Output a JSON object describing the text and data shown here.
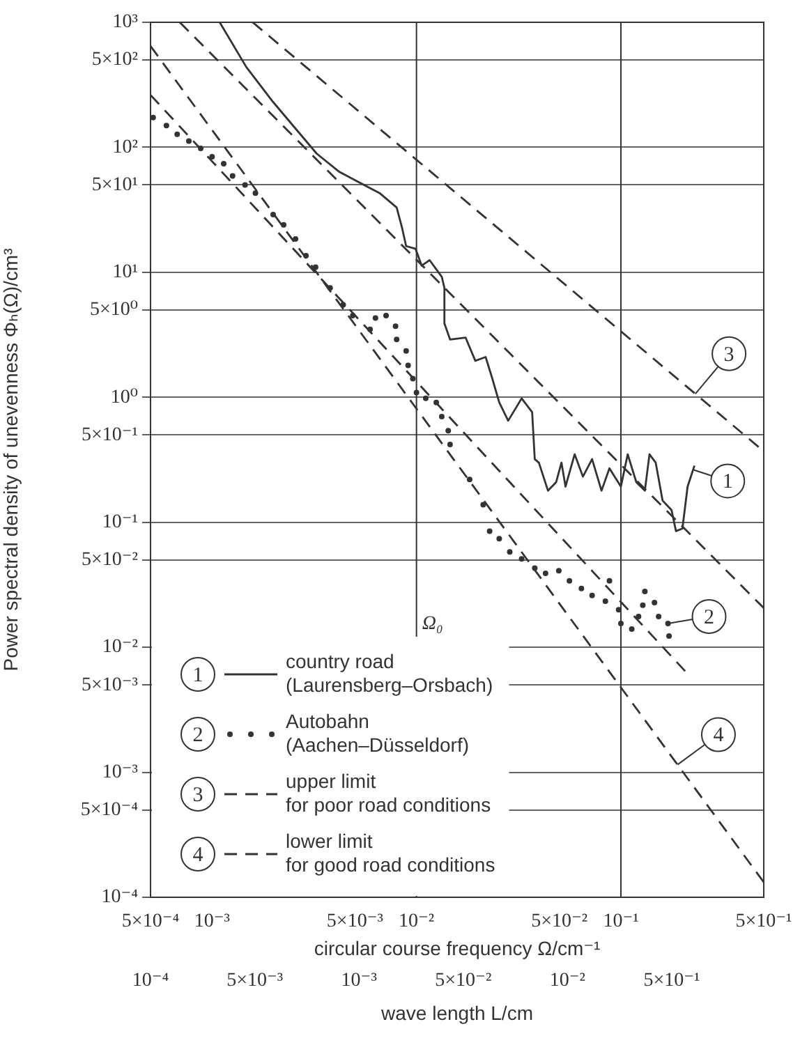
{
  "chart_data": {
    "type": "line",
    "xlabel": "circular course frequency Ω/cm⁻¹",
    "ylabel": "Power spectral density of unevenness Φₕ(Ω)/cm³",
    "x2label": "wave length L/cm",
    "log": "xy",
    "grid": "y",
    "legend": "bottom left",
    "xlim": [
      0.0005,
      0.5
    ],
    "xticks": [
      {
        "value": 0.0005,
        "label": "5×10⁻⁴"
      },
      {
        "value": 0.001,
        "label": "10⁻³"
      },
      {
        "value": 0.005,
        "label": "5×10⁻³"
      },
      {
        "value": 0.01,
        "label": "10⁻²"
      },
      {
        "value": 0.05,
        "label": "5×10⁻²"
      },
      {
        "value": 0.1,
        "label": "10⁻¹"
      },
      {
        "value": 0.5,
        "label": "5×10⁻¹"
      }
    ],
    "ylim": [
      0.0001,
      1000
    ],
    "yticks": [
      {
        "value": 1000,
        "label": "10³"
      },
      {
        "value": 500,
        "label": "5×10²"
      },
      {
        "value": 100,
        "label": "10²"
      },
      {
        "value": 50,
        "label": "5×10¹"
      },
      {
        "value": 10,
        "label": "10¹"
      },
      {
        "value": 5,
        "label": "5×10⁰"
      },
      {
        "value": 1,
        "label": "10⁰"
      },
      {
        "value": 0.5,
        "label": "5×10⁻¹"
      },
      {
        "value": 0.1,
        "label": "10⁻¹"
      },
      {
        "value": 0.05,
        "label": "5×10⁻²"
      },
      {
        "value": 0.01,
        "label": "10⁻²"
      },
      {
        "value": 0.005,
        "label": "5×10⁻³"
      },
      {
        "value": 0.001,
        "label": "10⁻³"
      },
      {
        "value": 0.0005,
        "label": "5×10⁻⁴"
      },
      {
        "value": 0.0001,
        "label": "10⁻⁴"
      }
    ],
    "ref_lines": [
      {
        "axis": "x",
        "value": 0.01,
        "label": "Ω₀"
      },
      {
        "axis": "x",
        "value": 0.1
      }
    ],
    "series": [
      {
        "name": "country road\n(Laurensberg–Orsbach)",
        "line_style": "solid",
        "color": "#333333",
        "x": [
          0.00109,
          0.00147,
          0.00199,
          0.00325,
          0.0042,
          0.0066,
          0.008,
          0.0085,
          0.0089,
          0.0099,
          0.0106,
          0.0116,
          0.0133,
          0.0137,
          0.0137,
          0.0146,
          0.0174,
          0.0194,
          0.0218,
          0.0235,
          0.0254,
          0.0281,
          0.0327,
          0.0368,
          0.0379,
          0.0397,
          0.044,
          0.0482,
          0.0512,
          0.0536,
          0.0594,
          0.0652,
          0.0723,
          0.0804,
          0.0879,
          0.1,
          0.108,
          0.119,
          0.131,
          0.138,
          0.148,
          0.16,
          0.177,
          0.186,
          0.2,
          0.212,
          0.229
        ],
        "values": [
          1000,
          439,
          230,
          89,
          63.5,
          43,
          33,
          22.7,
          16.2,
          15.4,
          11.3,
          12.5,
          9.2,
          7.5,
          3.9,
          2.9,
          3.0,
          1.96,
          2.1,
          1.41,
          0.91,
          0.65,
          0.98,
          0.76,
          0.32,
          0.3,
          0.179,
          0.209,
          0.3,
          0.193,
          0.35,
          0.232,
          0.32,
          0.179,
          0.27,
          0.193,
          0.35,
          0.209,
          0.179,
          0.35,
          0.3,
          0.149,
          0.125,
          0.085,
          0.089,
          0.193,
          0.284
        ]
      },
      {
        "name": "Autobahn\n(Aachen–Düsseldorf)",
        "type": "scatter",
        "marker": "circle",
        "color": "#333333",
        "x": [
          0.000515,
          0.000598,
          0.000675,
          0.00077,
          0.00088,
          0.001,
          0.00114,
          0.00126,
          0.00145,
          0.00163,
          0.00199,
          0.00224,
          0.00256,
          0.00288,
          0.00321,
          0.00378,
          0.00438,
          0.00488,
          0.00593,
          0.0063,
          0.0071,
          0.0079,
          0.008,
          0.0089,
          0.0091,
          0.0096,
          0.01,
          0.0111,
          0.0125,
          0.0133,
          0.0143,
          0.0146,
          0.0182,
          0.0212,
          0.0228,
          0.0254,
          0.0286,
          0.0327,
          0.0379,
          0.0428,
          0.0497,
          0.056,
          0.0641,
          0.0723,
          0.084,
          0.0879,
          0.0975,
          0.1,
          0.113,
          0.122,
          0.128,
          0.131,
          0.146,
          0.153,
          0.17,
          0.172
        ],
        "values": [
          173,
          149,
          127,
          112,
          98,
          84,
          74,
          59,
          50,
          43,
          29,
          24,
          18.5,
          13.6,
          11.0,
          7.5,
          5.5,
          4.5,
          3.5,
          4.3,
          4.5,
          3.7,
          2.9,
          2.35,
          1.8,
          1.41,
          1.09,
          0.98,
          0.91,
          0.7,
          0.54,
          0.42,
          0.22,
          0.138,
          0.085,
          0.074,
          0.058,
          0.051,
          0.043,
          0.039,
          0.041,
          0.034,
          0.0295,
          0.026,
          0.0234,
          0.034,
          0.02,
          0.0155,
          0.014,
          0.0176,
          0.0217,
          0.028,
          0.0228,
          0.0176,
          0.0155,
          0.0123
        ]
      },
      {
        "name": "upper limit\nfor poor road conditions",
        "line_style": "dashed",
        "color": "#333333",
        "x": [
          0.00158,
          0.5
        ],
        "values": [
          1000,
          0.37
        ]
      },
      {
        "name": "lower limit\nfor good road conditions",
        "line_style": "dashed",
        "color": "#333333",
        "x": [
          0.0005,
          0.5
        ],
        "values": [
          645,
          0.000132
        ]
      },
      {
        "line_style": "dashed",
        "color": "#333333",
        "x": [
          0.000695,
          0.5
        ],
        "values": [
          1000,
          0.0206
        ]
      },
      {
        "line_style": "dashed",
        "color": "#333333",
        "x": [
          0.0005,
          0.207
        ],
        "values": [
          262,
          0.0064
        ]
      }
    ],
    "annotations": [
      "10⁻⁴",
      "5×10⁻³",
      "10⁻³",
      "5×10⁻²",
      "10⁻²",
      "5×10⁻¹",
      {
        "text": "1",
        "x": 0.333,
        "y": 0.214
      },
      {
        "text": "2",
        "x": 0.27,
        "y": 0.0176
      },
      {
        "text": "3",
        "x": 0.338,
        "y": 2.23
      },
      {
        "text": "4",
        "x": 0.3,
        "y": 0.002
      }
    ]
  }
}
